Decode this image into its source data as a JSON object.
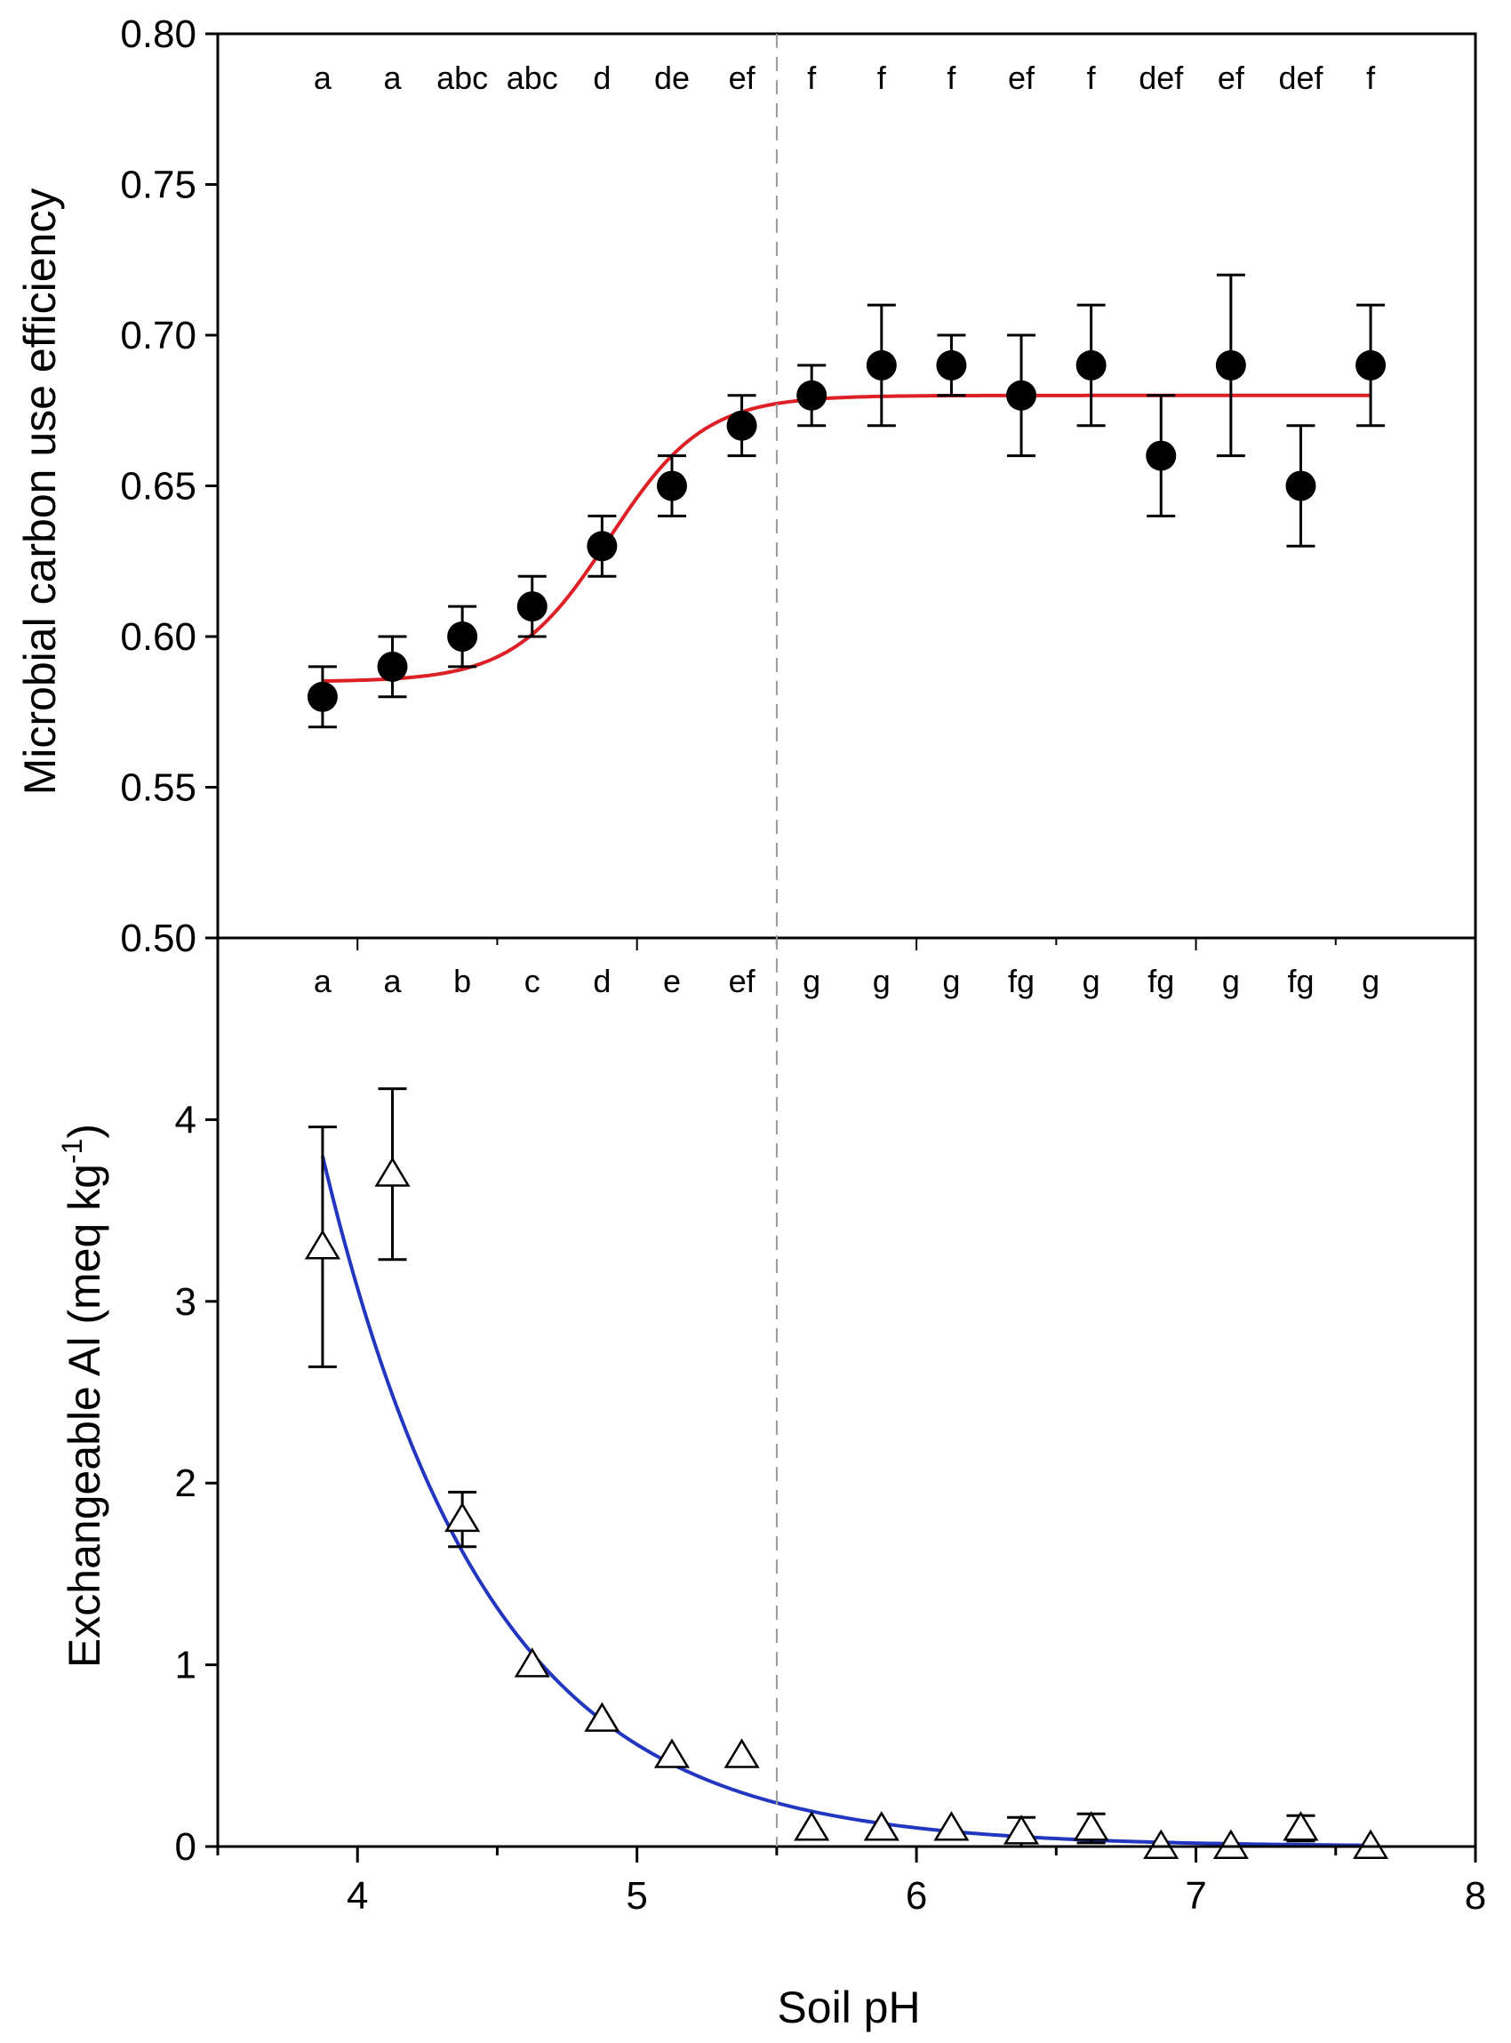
{
  "colors": {
    "top_fit": "#dd1f26",
    "bottom_fit": "#2236c0",
    "marker_filled": "#000000",
    "axis": "#000000",
    "divider": "#9a9a9a"
  },
  "chart_data": [
    {
      "type": "scatter",
      "name": "cue-panel",
      "ylabel": "Microbial carbon use efficiency",
      "ylim": [
        0.5,
        0.8
      ],
      "yticks": [
        "0.50",
        "0.55",
        "0.60",
        "0.65",
        "0.70",
        "0.75",
        "0.80"
      ],
      "ytick_values": [
        0.5,
        0.55,
        0.6,
        0.65,
        0.7,
        0.75,
        0.8
      ],
      "marker": "filled-circle",
      "x": [
        3.875,
        4.125,
        4.375,
        4.625,
        4.875,
        5.125,
        5.375,
        5.625,
        5.875,
        6.125,
        6.375,
        6.625,
        6.875,
        7.125,
        7.375,
        7.625
      ],
      "y": [
        0.58,
        0.59,
        0.6,
        0.61,
        0.63,
        0.65,
        0.67,
        0.68,
        0.69,
        0.69,
        0.68,
        0.69,
        0.66,
        0.69,
        0.65,
        0.69
      ],
      "err": [
        0.01,
        0.01,
        0.01,
        0.01,
        0.01,
        0.01,
        0.01,
        0.01,
        0.02,
        0.01,
        0.02,
        0.02,
        0.02,
        0.03,
        0.02,
        0.02
      ],
      "letters": [
        "a",
        "a",
        "abc",
        "abc",
        "d",
        "de",
        "ef",
        "f",
        "f",
        "f",
        "ef",
        "f",
        "def",
        "ef",
        "def",
        "f"
      ],
      "fit": {
        "type": "sigmoid",
        "color": "#dd1f26",
        "x_range": [
          3.875,
          7.625
        ],
        "baseline": 0.585,
        "amplitude": 0.095,
        "midpoint": 4.9,
        "scale": 0.17
      }
    },
    {
      "type": "scatter",
      "name": "al-panel",
      "ylabel": "Exchangeable Al (meq kg",
      "ylabel_superscript": "-1",
      "ylabel_suffix": ")",
      "xlabel": "Soil pH",
      "xlim": [
        3.5,
        8
      ],
      "xticks": [
        "4",
        "5",
        "6",
        "7",
        "8"
      ],
      "xtick_values": [
        4,
        5,
        6,
        7,
        8
      ],
      "ylim": [
        0,
        5
      ],
      "yticks": [
        "0",
        "1",
        "2",
        "3",
        "4"
      ],
      "ytick_values": [
        0,
        1,
        2,
        3,
        4
      ],
      "marker": "open-triangle",
      "x": [
        3.875,
        4.125,
        4.375,
        4.625,
        4.875,
        5.125,
        5.375,
        5.625,
        5.875,
        6.125,
        6.375,
        6.625,
        6.875,
        7.125,
        7.375,
        7.625
      ],
      "y": [
        3.3,
        3.7,
        1.8,
        1.0,
        0.7,
        0.5,
        0.5,
        0.1,
        0.1,
        0.1,
        0.08,
        0.1,
        0.0,
        0.0,
        0.1,
        0.0
      ],
      "err": [
        0.66,
        0.47,
        0.15,
        0.0,
        0.0,
        0.0,
        0.0,
        0.0,
        0.0,
        0.0,
        0.08,
        0.08,
        0.0,
        0.0,
        0.07,
        0.0
      ],
      "letters": [
        "a",
        "a",
        "b",
        "c",
        "d",
        "e",
        "ef",
        "g",
        "g",
        "g",
        "fg",
        "g",
        "fg",
        "g",
        "fg",
        "g"
      ],
      "fit": {
        "type": "exponential-decay",
        "color": "#2236c0",
        "x_range": [
          3.875,
          7.625
        ],
        "a": 3.8,
        "b": 1.7,
        "c": 0.0
      }
    }
  ],
  "threshold": {
    "x": 5.5,
    "style": "dashed"
  }
}
